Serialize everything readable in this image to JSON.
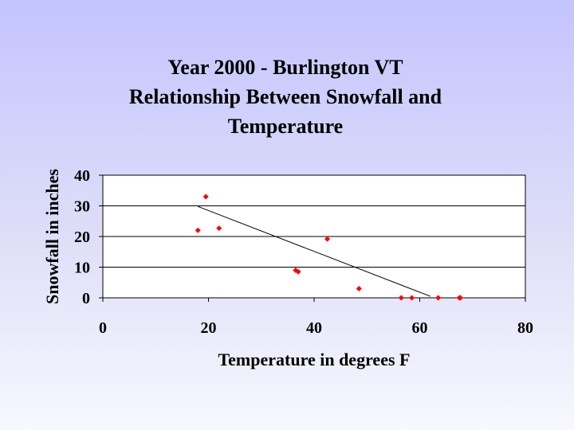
{
  "chart_data": {
    "type": "scatter",
    "title": [
      "Year 2000 - Burlington VT",
      "Relationship Between Snowfall and",
      "Temperature"
    ],
    "xlabel": "Temperature in degrees F",
    "ylabel": "Snowfall in inches",
    "xlim": [
      0,
      80
    ],
    "ylim": [
      0,
      40
    ],
    "xticks": [
      "0",
      "20",
      "40",
      "60",
      "80"
    ],
    "yticks": [
      "0",
      "10",
      "20",
      "30",
      "40"
    ],
    "grid": "horizontal",
    "points": [
      {
        "x": 18,
        "y": 22
      },
      {
        "x": 19.5,
        "y": 33
      },
      {
        "x": 22,
        "y": 22.7
      },
      {
        "x": 36.5,
        "y": 9
      },
      {
        "x": 37,
        "y": 8.5
      },
      {
        "x": 42.5,
        "y": 19.2
      },
      {
        "x": 48.5,
        "y": 3
      },
      {
        "x": 56.5,
        "y": 0
      },
      {
        "x": 58.5,
        "y": 0
      },
      {
        "x": 63.5,
        "y": 0
      },
      {
        "x": 67.5,
        "y": 0
      },
      {
        "x": 67.7,
        "y": 0
      }
    ],
    "trendline": {
      "x": [
        18,
        62
      ],
      "y": [
        29.8,
        0.5
      ]
    },
    "colors": {
      "points": "#ff0000",
      "trendline": "#000000",
      "plot_bg": "#ffffff",
      "grid": "#000000"
    }
  }
}
